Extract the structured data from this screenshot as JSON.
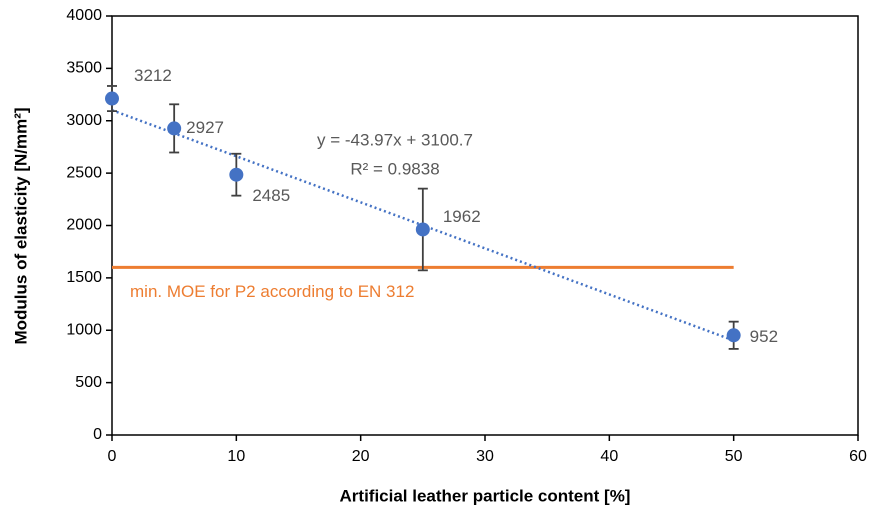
{
  "chart_data": {
    "type": "scatter",
    "x_label": "Artificial leather particle content [%]",
    "y_label": "Modulus of elasticity [N/mm²]",
    "x": [
      0,
      5,
      10,
      25,
      50
    ],
    "series": [
      {
        "color": "#4472c4",
        "values": [
          3212,
          2927,
          2485,
          1962,
          952
        ],
        "errors": [
          120,
          230,
          200,
          390,
          130
        ]
      }
    ],
    "trendline": {
      "slope": -43.97,
      "intercept": 3100.7,
      "label": "y = -43.97x + 3100.7",
      "r2_label": "R² = 0.9838",
      "color": "#4472c4"
    },
    "reference_line": {
      "value": 1600,
      "xrange": [
        0,
        50
      ],
      "label": "min. MOE for P2 according to EN 312",
      "color": "#ed7d31"
    },
    "xlim": [
      0,
      60
    ],
    "xticks": [
      0,
      10,
      20,
      30,
      40,
      50,
      60
    ],
    "ylim": [
      0,
      4000
    ],
    "yticks": [
      0,
      500,
      1000,
      1500,
      2000,
      2500,
      3000,
      3500,
      4000
    ]
  }
}
